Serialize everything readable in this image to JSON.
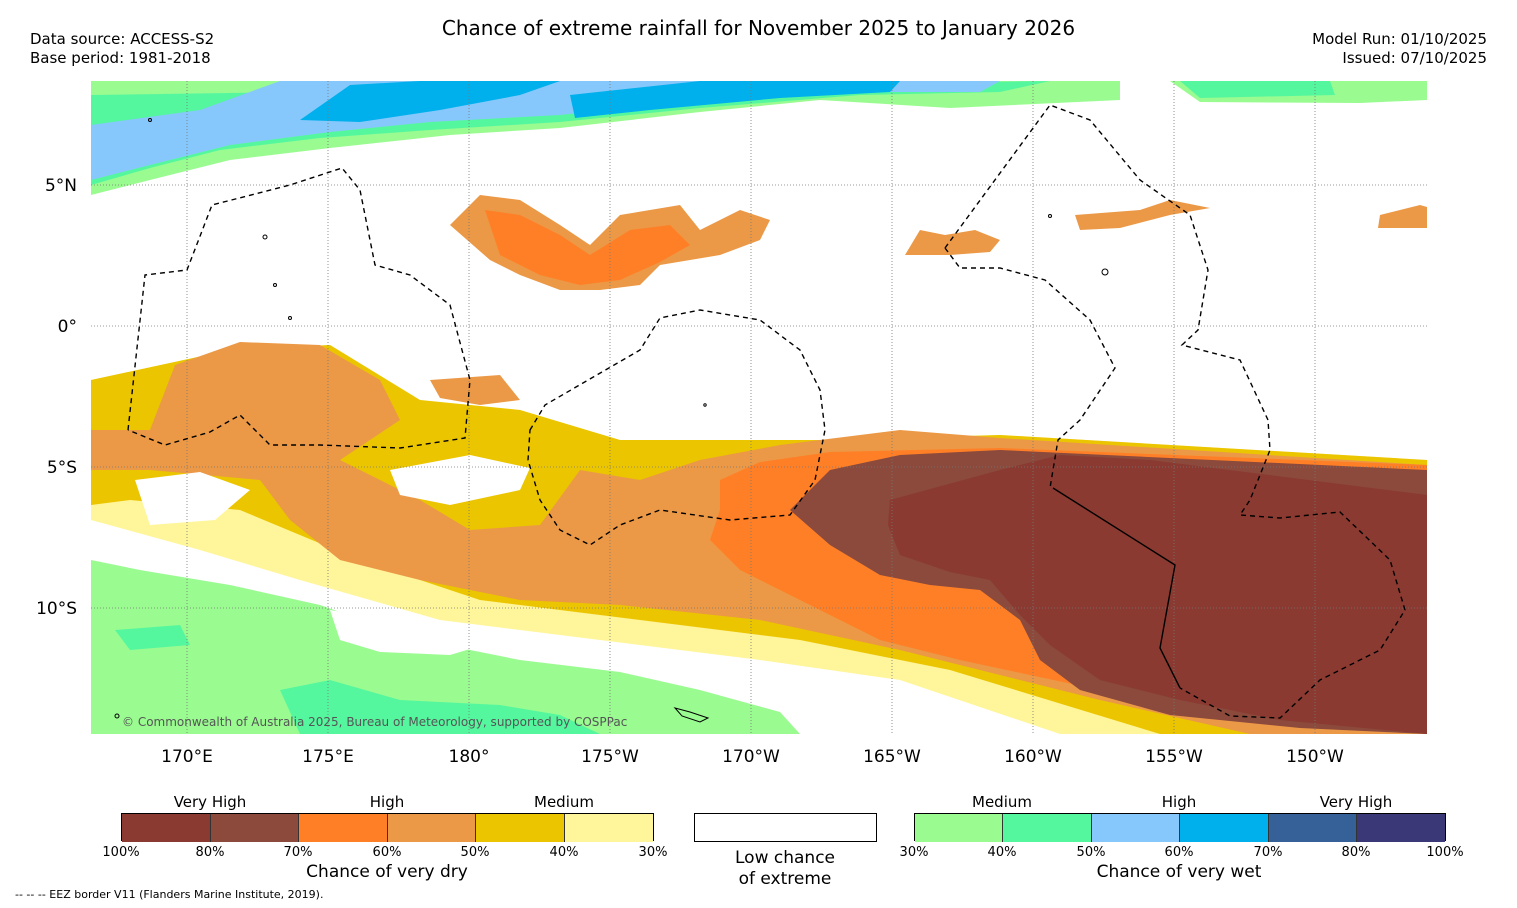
{
  "header": {
    "title": "Chance of extreme rainfall for November 2025 to January 2026",
    "data_source": "Data source: ACCESS-S2",
    "base_period": "Base period: 1981-2018",
    "model_run": "Model Run: 01/10/2025",
    "issued": "Issued: 07/10/2025"
  },
  "map": {
    "lat_labels": [
      "5°N",
      "0°",
      "5°S",
      "10°S"
    ],
    "lon_labels": [
      "170°E",
      "175°E",
      "180°",
      "175°W",
      "170°W",
      "165°W",
      "160°W",
      "155°W",
      "150°W"
    ],
    "copyright": "© Commonwealth of Australia 2025, Bureau of Meteorology, supported by COSPPac",
    "colors": {
      "dry_100": "#8a3a31",
      "dry_80": "#8b4a3c",
      "dry_70": "#ff7f27",
      "dry_60": "#eb9946",
      "dry_50": "#ebc500",
      "dry_40": "#fff59a",
      "wet_30": "#9afb91",
      "wet_40": "#55f79e",
      "wet_50": "#86c8fb",
      "wet_60": "#00b0ec",
      "wet_70": "#366098",
      "wet_80": "#3a3877"
    }
  },
  "legend": {
    "dry": {
      "title": "Chance of very dry",
      "categories": [
        "Very High",
        "High",
        "Medium"
      ],
      "ticks": [
        "100%",
        "80%",
        "70%",
        "60%",
        "50%",
        "40%",
        "30%"
      ],
      "colors": [
        "#8a3a31",
        "#8b4a3c",
        "#ff7f27",
        "#eb9946",
        "#ebc500",
        "#fff59a"
      ]
    },
    "low": {
      "title_line1": "Low chance",
      "title_line2": "of extreme"
    },
    "wet": {
      "title": "Chance of very wet",
      "categories": [
        "Medium",
        "High",
        "Very High"
      ],
      "ticks": [
        "30%",
        "40%",
        "50%",
        "60%",
        "70%",
        "80%",
        "100%"
      ],
      "colors": [
        "#9afb91",
        "#55f79e",
        "#86c8fb",
        "#00b0ec",
        "#366098",
        "#3a3877"
      ]
    }
  },
  "footer": {
    "eez_note": "--  --  -- EEZ border V11 (Flanders Marine Institute, 2019)."
  }
}
